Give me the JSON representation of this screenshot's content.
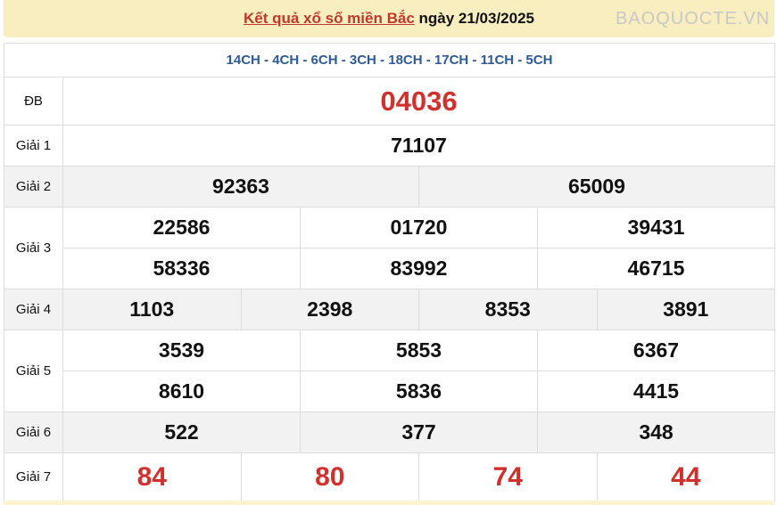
{
  "header": {
    "link": "Kết quả xổ số miền Bắc",
    "date_text": "ngày 21/03/2025"
  },
  "codes": "14CH - 4CH - 6CH - 3CH - 18CH - 17CH - 11CH - 5CH",
  "prizes": {
    "db": {
      "label": "ĐB",
      "values": [
        "04036"
      ]
    },
    "g1": {
      "label": "Giải 1",
      "values": [
        "71107"
      ]
    },
    "g2": {
      "label": "Giải 2",
      "values": [
        "92363",
        "65009"
      ]
    },
    "g3": {
      "label": "Giải 3",
      "values": [
        "22586",
        "01720",
        "39431",
        "58336",
        "83992",
        "46715"
      ]
    },
    "g4": {
      "label": "Giải 4",
      "values": [
        "1103",
        "2398",
        "8353",
        "3891"
      ]
    },
    "g5": {
      "label": "Giải 5",
      "values": [
        "3539",
        "5853",
        "6367",
        "8610",
        "5836",
        "4415"
      ]
    },
    "g6": {
      "label": "Giải 6",
      "values": [
        "522",
        "377",
        "348"
      ]
    },
    "g7": {
      "label": "Giải 7",
      "values": [
        "84",
        "80",
        "74",
        "44"
      ]
    }
  },
  "watermark": "BAOQUOCTE.VN",
  "colors": {
    "accent": "#d0312d",
    "codes": "#2e5a96",
    "header_bg": "#f8eec0"
  }
}
